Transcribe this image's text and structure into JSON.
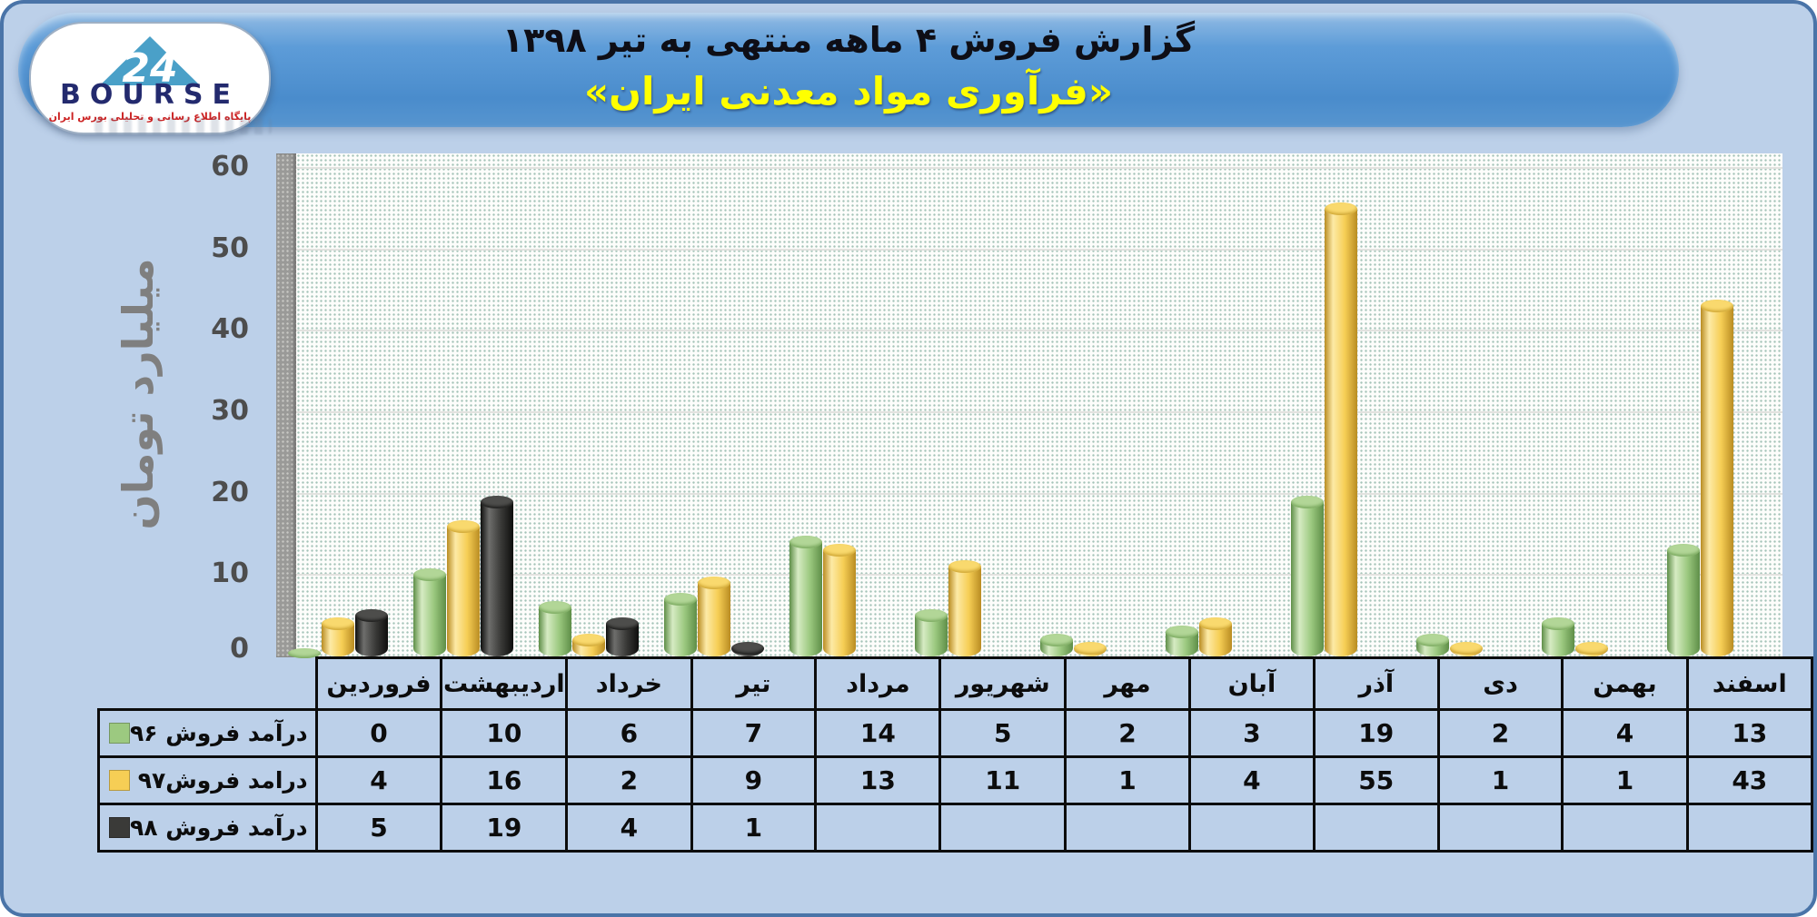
{
  "header": {
    "title_line1": "گزارش فروش ۴ ماهه منتهی به تیر ۱۳۹۸",
    "title_line2": "«فرآوری مواد معدنی ایران»"
  },
  "logo": {
    "number": "24",
    "brand": "BOURSE",
    "subtitle": "پایگاه اطلاع رسانی و تحلیلی بورس ایران"
  },
  "chart_data": {
    "type": "bar",
    "style": "3d-cylinder",
    "title": "گزارش فروش ۴ ماهه منتهی به تیر ۱۳۹۸ - فرآوری مواد معدنی ایران",
    "categories": [
      "فروردین",
      "اردیبهشت",
      "خرداد",
      "تیر",
      "مرداد",
      "شهریور",
      "مهر",
      "آبان",
      "آذر",
      "دی",
      "بهمن",
      "اسفند"
    ],
    "series": [
      {
        "name": "درآمد فروش ۹۶",
        "color": "#9cc980",
        "values": [
          0,
          10,
          6,
          7,
          14,
          5,
          2,
          3,
          19,
          2,
          4,
          13
        ]
      },
      {
        "name": "درامد فروش۹۷",
        "color": "#f6ce55",
        "values": [
          4,
          16,
          2,
          9,
          13,
          11,
          1,
          4,
          55,
          1,
          1,
          43
        ]
      },
      {
        "name": "درآمد فروش ۹۸",
        "color": "#3a3a38",
        "values": [
          5,
          19,
          4,
          1,
          null,
          null,
          null,
          null,
          null,
          null,
          null,
          null
        ]
      }
    ],
    "ylabel": "میلیارد تومان",
    "xlabel": "",
    "ylim": [
      0,
      60
    ],
    "yticks": [
      0,
      10,
      20,
      30,
      40,
      50,
      60
    ],
    "grid": true,
    "legend_position": "table-left"
  }
}
